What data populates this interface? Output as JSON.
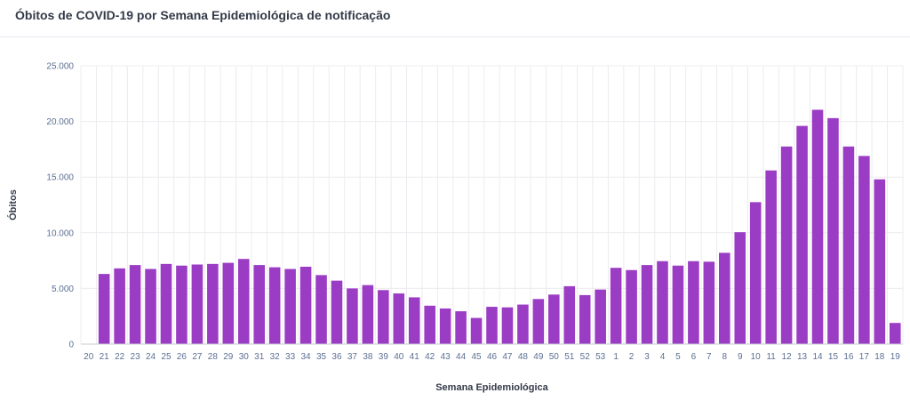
{
  "header": {
    "title": "Óbitos de COVID-19 por Semana Epidemiológica de notificação"
  },
  "colors": {
    "bar": "#9b3cc4",
    "grid": "#ececf0",
    "axis": "#c8ccd6",
    "tick_text": "#5c6f92"
  },
  "chart_data": {
    "type": "bar",
    "title": "Óbitos de COVID-19 por Semana Epidemiológica de notificação",
    "xlabel": "Semana Epidemiológica",
    "ylabel": "Óbitos",
    "ylim": [
      0,
      25000
    ],
    "yticks": [
      0,
      5000,
      10000,
      15000,
      20000,
      25000
    ],
    "ytick_labels": [
      "0",
      "5.000",
      "10.000",
      "15.000",
      "20.000",
      "25.000"
    ],
    "grid": true,
    "categories": [
      "20",
      "21",
      "22",
      "23",
      "24",
      "25",
      "26",
      "27",
      "28",
      "29",
      "30",
      "31",
      "32",
      "33",
      "34",
      "35",
      "36",
      "37",
      "38",
      "39",
      "40",
      "41",
      "42",
      "43",
      "44",
      "45",
      "46",
      "47",
      "48",
      "49",
      "50",
      "51",
      "52",
      "53",
      "1",
      "2",
      "3",
      "4",
      "5",
      "6",
      "7",
      "8",
      "9",
      "10",
      "11",
      "12",
      "13",
      "14",
      "15",
      "16",
      "17",
      "18",
      "19"
    ],
    "values": [
      0,
      6300,
      6800,
      7100,
      6750,
      7200,
      7050,
      7150,
      7200,
      7300,
      7650,
      7100,
      6900,
      6750,
      6950,
      6200,
      5700,
      5000,
      5300,
      4850,
      4550,
      4200,
      3450,
      3200,
      2950,
      2350,
      3350,
      3300,
      3550,
      4050,
      4450,
      5200,
      4400,
      4900,
      6850,
      6650,
      7100,
      7450,
      7050,
      7450,
      7400,
      8200,
      10050,
      12750,
      15600,
      17750,
      19600,
      21050,
      20300,
      17750,
      16900,
      14800,
      1900
    ]
  }
}
